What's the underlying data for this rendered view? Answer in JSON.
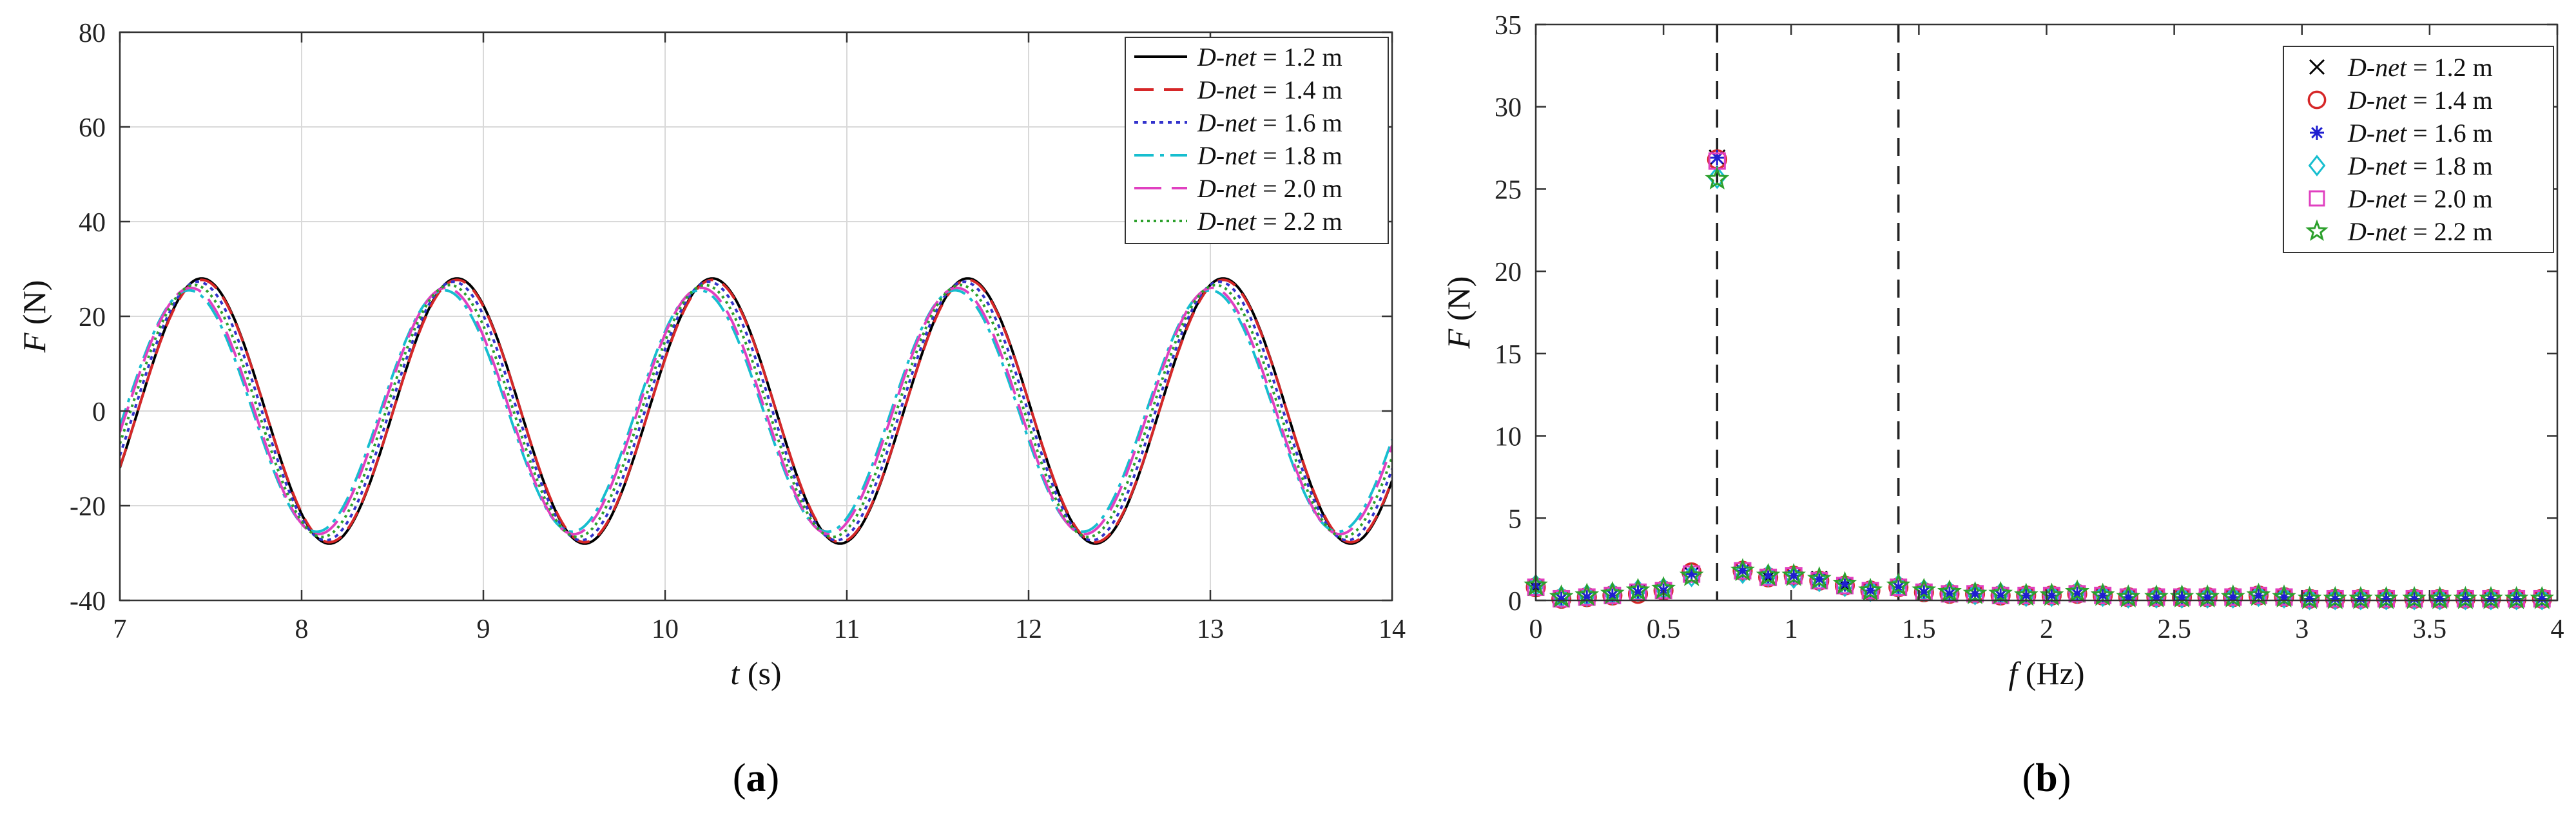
{
  "chart_data": [
    {
      "type": "line",
      "panel_label": "a",
      "xlabel_var": "t",
      "xlabel_unit": "(s)",
      "ylabel_var": "F",
      "ylabel_unit": "(N)",
      "xlim": [
        7,
        14
      ],
      "ylim": [
        -40,
        80
      ],
      "xticks": [
        7,
        8,
        9,
        10,
        11,
        12,
        13,
        14
      ],
      "yticks": [
        -40,
        -20,
        0,
        20,
        40,
        60,
        80
      ],
      "grid": true,
      "legend_position": "top-right",
      "series": [
        {
          "name_italic": "D-net",
          "name_rest": " = 1.2 m",
          "color": "#000000",
          "dash": "",
          "amplitude": 28,
          "period": 1.405,
          "peak_t": 7.45
        },
        {
          "name_italic": "D-net",
          "name_rest": " = 1.4 m",
          "color": "#d62728",
          "dash": "30,16",
          "amplitude": 27.7,
          "period": 1.405,
          "peak_t": 7.45
        },
        {
          "name_italic": "D-net",
          "name_rest": " = 1.6 m",
          "color": "#3333cc",
          "dash": "6,7",
          "amplitude": 27.3,
          "period": 1.405,
          "peak_t": 7.43
        },
        {
          "name_italic": "D-net",
          "name_rest": " = 1.8 m",
          "color": "#17becf",
          "dash": "30,10,6,10",
          "amplitude": 25.5,
          "period": 1.405,
          "peak_t": 7.38
        },
        {
          "name_italic": "D-net",
          "name_rest": " = 2.0 m",
          "color": "#e040c0",
          "dash": "42,16",
          "amplitude": 26,
          "period": 1.405,
          "peak_t": 7.39
        },
        {
          "name_italic": "D-net",
          "name_rest": " = 2.2 m",
          "color": "#2ca02c",
          "dash": "4,6",
          "amplitude": 26.6,
          "period": 1.405,
          "peak_t": 7.41
        }
      ]
    },
    {
      "type": "scatter",
      "panel_label": "b",
      "xlabel_var": "f",
      "xlabel_unit": "(Hz)",
      "ylabel_var": "F",
      "ylabel_unit": "(N)",
      "xlim": [
        0,
        4
      ],
      "ylim": [
        0,
        35
      ],
      "xticks": [
        "0",
        "0.5",
        "1",
        "1.5",
        "2",
        "2.5",
        "3",
        "3.5",
        "4"
      ],
      "yticks": [
        0,
        5,
        10,
        15,
        20,
        25,
        30,
        35
      ],
      "grid": false,
      "legend_position": "top-right",
      "vlines": [
        0.71,
        1.42
      ],
      "x": [
        0,
        0.1,
        0.2,
        0.3,
        0.4,
        0.5,
        0.61,
        0.71,
        0.81,
        0.91,
        1.01,
        1.11,
        1.21,
        1.31,
        1.42,
        1.52,
        1.62,
        1.72,
        1.82,
        1.92,
        2.02,
        2.12,
        2.22,
        2.32,
        2.43,
        2.53,
        2.63,
        2.73,
        2.83,
        2.93,
        3.03,
        3.13,
        3.23,
        3.33,
        3.44,
        3.54,
        3.64,
        3.74,
        3.84,
        3.94
      ],
      "series": [
        {
          "name_italic": "D-net",
          "name_rest": " = 1.2 m",
          "marker": "x",
          "color": "#000000",
          "values": [
            0.8,
            0.1,
            0.2,
            0.3,
            0.5,
            0.6,
            1.6,
            26.9,
            1.8,
            1.4,
            1.5,
            1.3,
            0.9,
            0.6,
            0.8,
            0.5,
            0.4,
            0.4,
            0.3,
            0.3,
            0.3,
            0.4,
            0.3,
            0.2,
            0.2,
            0.2,
            0.2,
            0.2,
            0.3,
            0.2,
            0.1,
            0.1,
            0.1,
            0.1,
            0.1,
            0.1,
            0.1,
            0.1,
            0.1,
            0.1
          ]
        },
        {
          "name_italic": "D-net",
          "name_rest": " = 1.4 m",
          "marker": "o",
          "color": "#d62728",
          "values": [
            0.8,
            0.1,
            0.2,
            0.3,
            0.4,
            0.6,
            1.7,
            26.8,
            1.8,
            1.4,
            1.5,
            1.2,
            0.9,
            0.6,
            0.8,
            0.5,
            0.4,
            0.4,
            0.3,
            0.3,
            0.3,
            0.4,
            0.3,
            0.2,
            0.2,
            0.2,
            0.2,
            0.2,
            0.3,
            0.2,
            0.1,
            0.1,
            0.1,
            0.1,
            0.1,
            0.1,
            0.1,
            0.1,
            0.1,
            0.1
          ]
        },
        {
          "name_italic": "D-net",
          "name_rest": " = 1.6 m",
          "marker": "asterisk",
          "color": "#1f1fd0",
          "values": [
            0.9,
            0.1,
            0.2,
            0.3,
            0.5,
            0.6,
            1.6,
            26.9,
            1.8,
            1.5,
            1.5,
            1.3,
            1.0,
            0.6,
            0.8,
            0.5,
            0.4,
            0.4,
            0.3,
            0.3,
            0.3,
            0.4,
            0.3,
            0.2,
            0.2,
            0.2,
            0.2,
            0.2,
            0.3,
            0.2,
            0.1,
            0.1,
            0.1,
            0.1,
            0.1,
            0.1,
            0.1,
            0.1,
            0.1,
            0.1
          ]
        },
        {
          "name_italic": "D-net",
          "name_rest": " = 1.8 m",
          "marker": "diamond",
          "color": "#17becf",
          "values": [
            0.9,
            0.2,
            0.3,
            0.4,
            0.6,
            0.7,
            1.5,
            25.7,
            1.7,
            1.5,
            1.4,
            1.2,
            0.9,
            0.6,
            0.9,
            0.6,
            0.5,
            0.4,
            0.4,
            0.3,
            0.3,
            0.5,
            0.3,
            0.2,
            0.2,
            0.2,
            0.2,
            0.2,
            0.3,
            0.2,
            0.1,
            0.1,
            0.1,
            0.1,
            0.1,
            0.1,
            0.1,
            0.1,
            0.1,
            0.1
          ]
        },
        {
          "name_italic": "D-net",
          "name_rest": " = 2.0 m",
          "marker": "square",
          "color": "#e040c0",
          "values": [
            0.8,
            0.1,
            0.2,
            0.3,
            0.5,
            0.6,
            1.6,
            26.7,
            1.8,
            1.4,
            1.5,
            1.2,
            0.9,
            0.6,
            0.8,
            0.5,
            0.4,
            0.4,
            0.3,
            0.3,
            0.3,
            0.4,
            0.3,
            0.2,
            0.2,
            0.2,
            0.2,
            0.2,
            0.3,
            0.2,
            0.1,
            0.1,
            0.1,
            0.1,
            0.1,
            0.1,
            0.1,
            0.1,
            0.1,
            0.1
          ]
        },
        {
          "name_italic": "D-net",
          "name_rest": " = 2.2 m",
          "marker": "star",
          "color": "#2ca02c",
          "values": [
            0.9,
            0.2,
            0.3,
            0.4,
            0.6,
            0.7,
            1.5,
            25.6,
            1.8,
            1.5,
            1.5,
            1.3,
            1.0,
            0.6,
            0.9,
            0.6,
            0.5,
            0.4,
            0.4,
            0.3,
            0.3,
            0.5,
            0.3,
            0.2,
            0.2,
            0.2,
            0.2,
            0.2,
            0.3,
            0.2,
            0.1,
            0.1,
            0.1,
            0.1,
            0.1,
            0.1,
            0.1,
            0.1,
            0.1,
            0.1
          ]
        }
      ]
    }
  ]
}
